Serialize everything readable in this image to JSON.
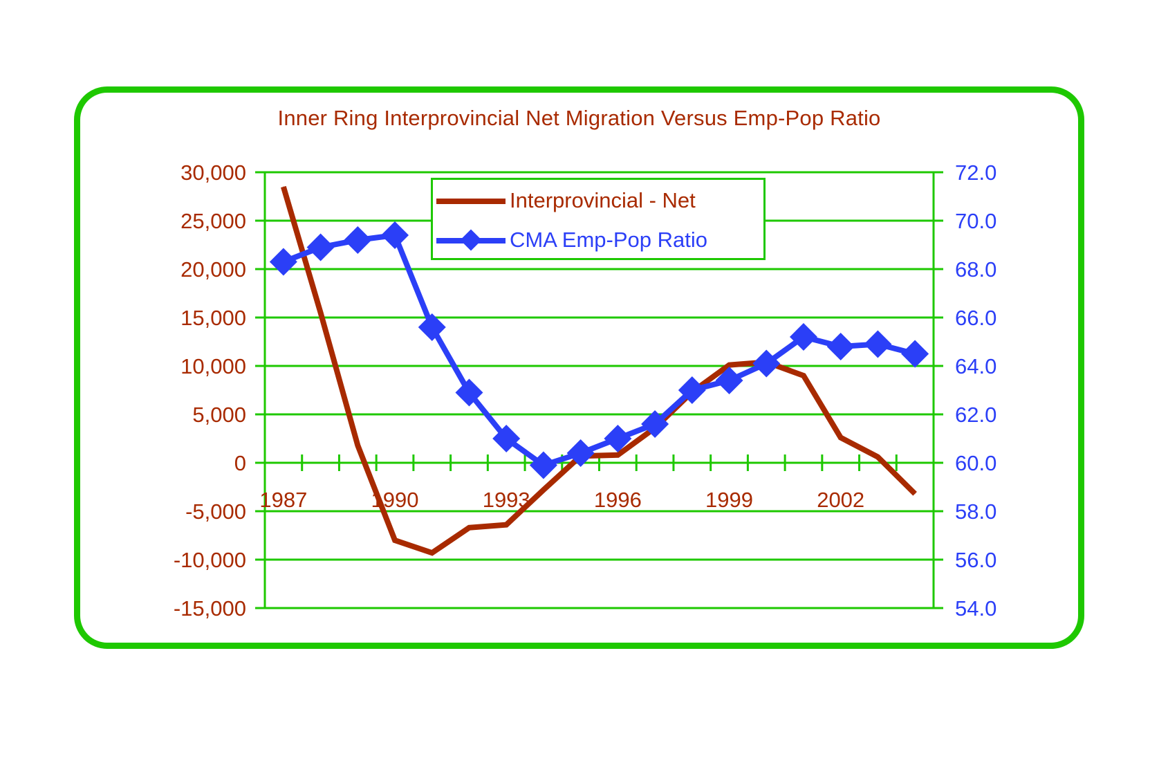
{
  "colors": {
    "frame": "#1ec800",
    "grid": "#1ec800",
    "series_net": "#a82a00",
    "series_ratio": "#2b3ff7",
    "title": "#a82a00",
    "left_axis_text": "#a82a00",
    "right_axis_text": "#2b3ff7",
    "x_axis_text": "#a82a00"
  },
  "legend": {
    "items": [
      {
        "label": "Interprovincial - Net",
        "icon": "line-icon"
      },
      {
        "label": "CMA Emp-Pop Ratio",
        "icon": "line-diamond-icon"
      }
    ]
  },
  "chart_data": {
    "type": "line",
    "title": "Inner Ring Interprovincial Net Migration Versus Emp-Pop Ratio",
    "xlabel": "",
    "ylabel": "",
    "y2label": "",
    "grid": true,
    "legend_position": "top-center",
    "x": [
      1987,
      1988,
      1989,
      1990,
      1991,
      1992,
      1993,
      1994,
      1995,
      1996,
      1997,
      1998,
      1999,
      2000,
      2001,
      2002,
      2003,
      2004
    ],
    "x_tick_labels": [
      "1987",
      "1990",
      "1993",
      "1996",
      "1999",
      "2002"
    ],
    "x_tick_label_years": [
      1987,
      1990,
      1993,
      1996,
      1999,
      2002
    ],
    "ylim": [
      -15000,
      30000
    ],
    "y_ticks": [
      30000,
      25000,
      20000,
      15000,
      10000,
      5000,
      0,
      -5000,
      -10000,
      -15000
    ],
    "y_tick_labels": [
      "30,000",
      "25,000",
      "20,000",
      "15,000",
      "10,000",
      "5,000",
      "0",
      "-5,000",
      "-10,000",
      "-15,000"
    ],
    "y2lim": [
      54.0,
      72.0
    ],
    "y2_ticks": [
      72.0,
      70.0,
      68.0,
      66.0,
      64.0,
      62.0,
      60.0,
      58.0,
      56.0,
      54.0
    ],
    "y2_tick_labels": [
      "72.0",
      "70.0",
      "68.0",
      "66.0",
      "64.0",
      "62.0",
      "60.0",
      "58.0",
      "56.0",
      "54.0"
    ],
    "series": [
      {
        "name": "Interprovincial - Net",
        "axis": "left",
        "marker": "none",
        "values": [
          28500,
          15500,
          1800,
          -8000,
          -9300,
          -6700,
          -6400,
          -2800,
          700,
          800,
          3600,
          7300,
          10100,
          10400,
          9000,
          2600,
          600,
          -3200
        ]
      },
      {
        "name": "CMA Emp-Pop Ratio",
        "axis": "right",
        "marker": "diamond",
        "values": [
          68.3,
          68.9,
          69.2,
          69.4,
          65.6,
          62.9,
          61.0,
          59.9,
          60.4,
          61.0,
          61.6,
          63.0,
          63.4,
          64.1,
          65.2,
          64.8,
          64.9,
          64.5
        ]
      }
    ]
  }
}
